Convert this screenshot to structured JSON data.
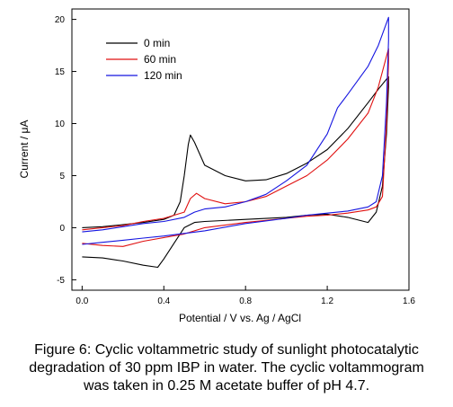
{
  "chart_data": {
    "type": "line",
    "xlabel": "Potential / V vs. Ag / AgCl",
    "ylabel": "Current / μA",
    "xlim": [
      -0.05,
      1.6
    ],
    "ylim": [
      -6,
      21
    ],
    "xticks": [
      0.0,
      0.4,
      0.8,
      1.2,
      1.6
    ],
    "xtick_labels": [
      "0.0",
      "0.4",
      "0.8",
      "1.2",
      "1.6"
    ],
    "yticks": [
      -5,
      0,
      5,
      10,
      15,
      20
    ],
    "ytick_labels": [
      "-5",
      "0",
      "5",
      "10",
      "15",
      "20"
    ],
    "grid": false,
    "legend": "top-left",
    "series": [
      {
        "name": "0 min",
        "color": "#000000",
        "x": [
          0.0,
          0.1,
          0.2,
          0.3,
          0.4,
          0.45,
          0.48,
          0.5,
          0.52,
          0.53,
          0.55,
          0.6,
          0.7,
          0.8,
          0.9,
          1.0,
          1.1,
          1.2,
          1.3,
          1.4,
          1.45,
          1.5,
          1.5,
          1.49,
          1.47,
          1.44,
          1.4,
          1.3,
          1.2,
          1.1,
          1.0,
          0.8,
          0.6,
          0.55,
          0.5,
          0.45,
          0.4,
          0.37,
          0.3,
          0.2,
          0.1,
          0.0
        ],
        "y": [
          0.0,
          0.1,
          0.3,
          0.5,
          0.8,
          1.2,
          2.5,
          5.0,
          8.0,
          8.9,
          8.2,
          6.0,
          5.0,
          4.5,
          4.6,
          5.2,
          6.2,
          7.5,
          9.5,
          12.0,
          13.3,
          14.5,
          13.5,
          9.0,
          4.0,
          1.5,
          0.5,
          1.0,
          1.3,
          1.2,
          1.0,
          0.8,
          0.6,
          0.5,
          0.0,
          -1.5,
          -3.0,
          -3.8,
          -3.6,
          -3.2,
          -2.9,
          -2.8
        ]
      },
      {
        "name": "60 min",
        "color": "#e01010",
        "x": [
          0.0,
          0.1,
          0.2,
          0.3,
          0.4,
          0.5,
          0.53,
          0.56,
          0.6,
          0.7,
          0.8,
          0.9,
          1.0,
          1.1,
          1.2,
          1.3,
          1.4,
          1.45,
          1.5,
          1.5,
          1.49,
          1.47,
          1.44,
          1.4,
          1.3,
          1.2,
          1.1,
          1.0,
          0.8,
          0.6,
          0.5,
          0.3,
          0.2,
          0.1,
          0.0
        ],
        "y": [
          -0.2,
          0.0,
          0.2,
          0.6,
          0.9,
          1.5,
          2.8,
          3.3,
          2.8,
          2.3,
          2.5,
          3.0,
          4.0,
          5.0,
          6.5,
          8.5,
          11.0,
          13.5,
          17.2,
          16.0,
          10.0,
          3.0,
          2.0,
          1.7,
          1.4,
          1.2,
          1.1,
          0.9,
          0.5,
          0.0,
          -0.6,
          -1.3,
          -1.8,
          -1.7,
          -1.5
        ]
      },
      {
        "name": "120 min",
        "color": "#1414e0",
        "x": [
          0.0,
          0.1,
          0.2,
          0.3,
          0.4,
          0.5,
          0.55,
          0.6,
          0.7,
          0.8,
          0.9,
          1.0,
          1.1,
          1.2,
          1.25,
          1.3,
          1.4,
          1.45,
          1.5,
          1.5,
          1.49,
          1.47,
          1.44,
          1.4,
          1.3,
          1.2,
          1.1,
          1.0,
          0.8,
          0.6,
          0.4,
          0.3,
          0.2,
          0.1,
          0.0
        ],
        "y": [
          -0.4,
          -0.2,
          0.1,
          0.4,
          0.6,
          1.0,
          1.5,
          1.8,
          2.0,
          2.5,
          3.2,
          4.5,
          6.0,
          9.0,
          11.5,
          12.8,
          15.5,
          17.5,
          20.2,
          18.0,
          12.0,
          5.0,
          2.5,
          2.0,
          1.6,
          1.4,
          1.2,
          0.9,
          0.4,
          -0.3,
          -0.8,
          -1.0,
          -1.2,
          -1.4,
          -1.6
        ]
      }
    ]
  },
  "caption": {
    "line1": "Figure 6:  Cyclic voltammetric study of sunlight photocatalytic",
    "line2": "degradation of 30 ppm IBP in water. The cyclic voltammogram",
    "line3": "was taken in 0.25 M acetate buffer of pH 4.7."
  }
}
